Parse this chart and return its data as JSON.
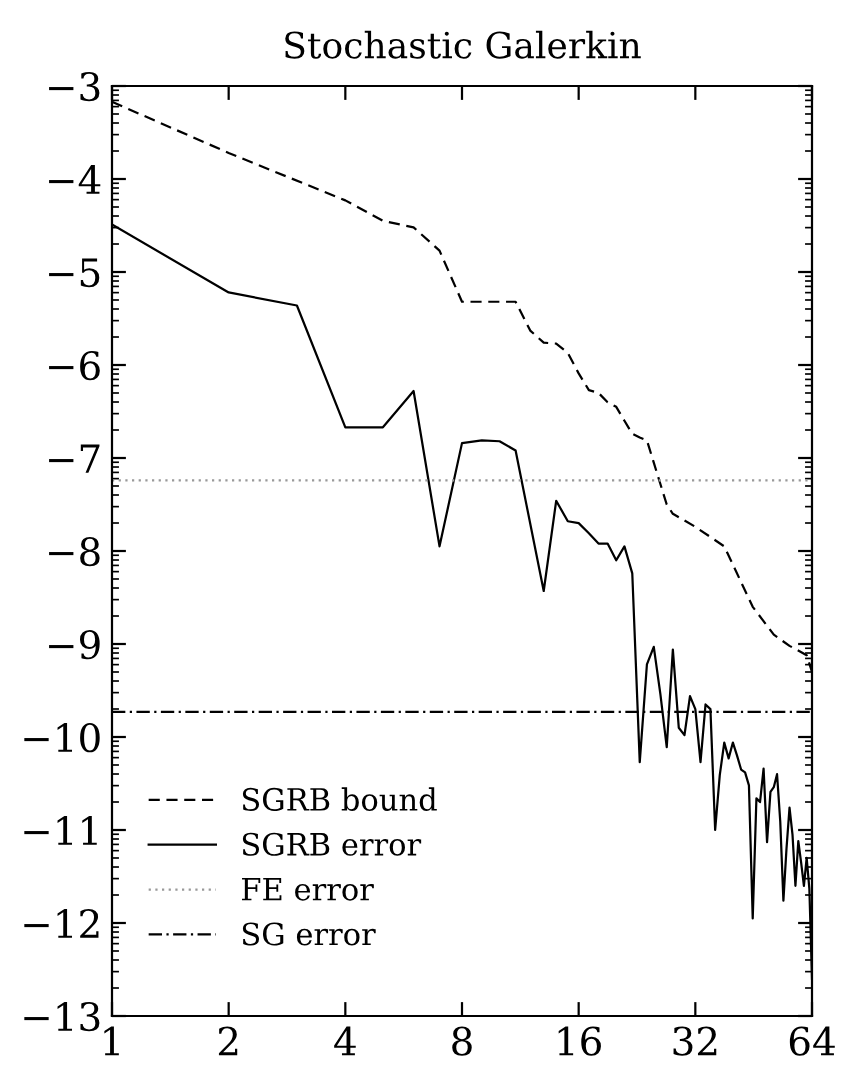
{
  "chart_data": {
    "type": "line",
    "title": "Stochastic Galerkin",
    "series": [
      {
        "name": "SGRB bound",
        "color": "#000000",
        "line_style": "dashed",
        "x": [
          1,
          2,
          4,
          5,
          6,
          7,
          8,
          11,
          12,
          13,
          14,
          15,
          16,
          17,
          18,
          19,
          20,
          21,
          22,
          23,
          24,
          25,
          26,
          27,
          28,
          32,
          38,
          45,
          51,
          56,
          62,
          64
        ],
        "values": [
          -3.17,
          -3.72,
          -4.23,
          -4.45,
          -4.52,
          -4.77,
          -5.32,
          -5.32,
          -5.63,
          -5.76,
          -5.77,
          -5.87,
          -6.09,
          -6.27,
          -6.3,
          -6.4,
          -6.45,
          -6.6,
          -6.74,
          -6.78,
          -6.81,
          -7.05,
          -7.28,
          -7.5,
          -7.6,
          -7.74,
          -7.95,
          -8.6,
          -8.9,
          -9.02,
          -9.12,
          -9.3
        ]
      },
      {
        "name": "SGRB error",
        "color": "#000000",
        "line_style": "solid",
        "x": [
          1,
          2,
          3,
          4,
          5,
          6,
          7,
          8,
          9,
          10,
          11,
          13,
          14,
          15,
          16,
          17,
          18,
          19,
          20,
          21,
          22,
          23,
          24,
          25,
          26,
          27,
          28,
          29,
          30,
          31,
          32,
          33,
          34,
          35,
          36,
          37,
          38,
          39,
          40,
          41,
          42,
          43,
          44,
          45,
          46,
          47,
          48,
          49,
          50,
          51,
          52,
          53,
          54,
          55,
          56,
          57,
          58,
          59,
          60,
          61,
          62,
          63,
          64
        ],
        "values": [
          -4.49,
          -5.22,
          -5.36,
          -6.67,
          -6.67,
          -6.28,
          -7.95,
          -6.84,
          -6.81,
          -6.82,
          -6.92,
          -8.43,
          -7.46,
          -7.68,
          -7.7,
          -7.81,
          -7.92,
          -7.92,
          -8.1,
          -7.95,
          -8.24,
          -10.27,
          -9.22,
          -9.03,
          -9.54,
          -10.11,
          -9.06,
          -9.9,
          -9.98,
          -9.56,
          -9.7,
          -10.27,
          -9.65,
          -9.7,
          -11.0,
          -10.41,
          -10.06,
          -10.23,
          -10.06,
          -10.2,
          -10.35,
          -10.38,
          -10.52,
          -11.95,
          -10.66,
          -10.7,
          -10.34,
          -11.13,
          -10.59,
          -10.54,
          -10.4,
          -10.91,
          -11.76,
          -11.2,
          -10.76,
          -11.05,
          -11.6,
          -11.12,
          -11.35,
          -11.6,
          -11.3,
          -11.63,
          -12.6
        ]
      }
    ],
    "ref_lines": [
      {
        "axis": "y",
        "value": -7.24,
        "label": "FE error",
        "color": "#999999",
        "line_style": "dotted"
      },
      {
        "axis": "y",
        "value": -9.73,
        "label": "SG error",
        "color": "#000000",
        "line_style": "dashdot"
      }
    ],
    "log": "x",
    "xlim": [
      1,
      64
    ],
    "xticks": [
      1,
      2,
      4,
      8,
      16,
      32,
      64
    ],
    "ylim": [
      -13,
      -3
    ],
    "yticks": [
      -13,
      -12,
      -11,
      -10,
      -9,
      -8,
      -7,
      -6,
      -5,
      -4,
      -3
    ],
    "grid": false,
    "legend": "bottom left",
    "marker": "none"
  }
}
